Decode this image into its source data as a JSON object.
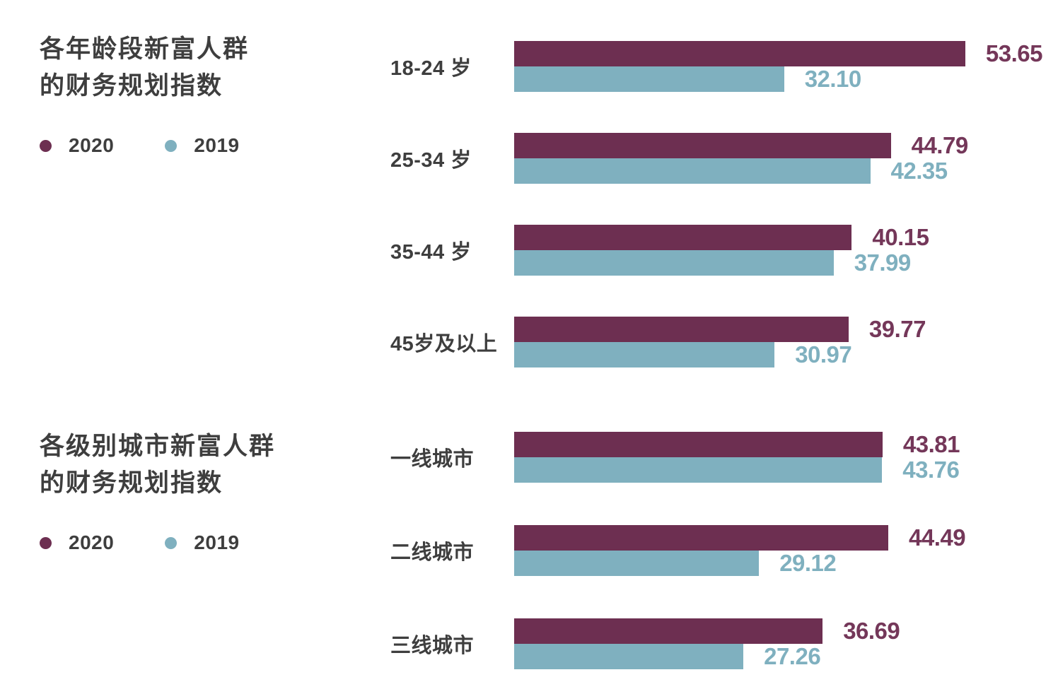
{
  "colors": {
    "series_2020": "#6d2f51",
    "series_2019": "#7fb0bf",
    "value_label_2020": "#743759",
    "value_label_2019": "#7fb0bf",
    "heading_text": "#3e3e3e",
    "background": "#ffffff"
  },
  "chart_data": [
    {
      "type": "bar",
      "orientation": "horizontal",
      "title": "各年龄段新富人群的财务规划指数",
      "title_lines": [
        "各年龄段新富人群",
        "的财务规划指数"
      ],
      "categories": [
        "18-24 岁",
        "25-34 岁",
        "35-44 岁",
        "45岁及以上"
      ],
      "series": [
        {
          "name": "2020",
          "color": "#6d2f51",
          "label_color": "#743759",
          "values": [
            53.65,
            44.79,
            40.15,
            39.77
          ]
        },
        {
          "name": "2019",
          "color": "#7fb0bf",
          "label_color": "#7fb0bf",
          "values": [
            32.1,
            42.35,
            37.99,
            30.97
          ]
        }
      ],
      "xlim": [
        0,
        55
      ],
      "grid": false,
      "value_labels": "outside-end",
      "legend_position": "left"
    },
    {
      "type": "bar",
      "orientation": "horizontal",
      "title": "各级别城市新富人群的财务规划指数",
      "title_lines": [
        "各级别城市新富人群",
        "的财务规划指数"
      ],
      "categories": [
        "一线城市",
        "二线城市",
        "三线城市"
      ],
      "series": [
        {
          "name": "2020",
          "color": "#6d2f51",
          "label_color": "#743759",
          "values": [
            43.81,
            44.49,
            36.69
          ]
        },
        {
          "name": "2019",
          "color": "#7fb0bf",
          "label_color": "#7fb0bf",
          "values": [
            43.76,
            29.12,
            27.26
          ]
        }
      ],
      "xlim": [
        0,
        55
      ],
      "grid": false,
      "value_labels": "outside-end",
      "legend_position": "left"
    }
  ]
}
